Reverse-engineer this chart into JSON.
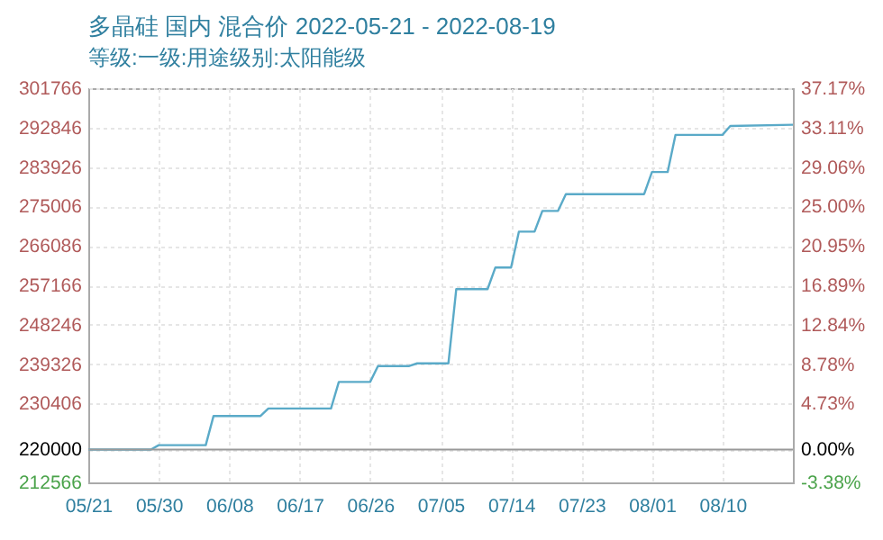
{
  "chart_data": {
    "type": "line",
    "title": "多晶硅 国内 混合价 2022-05-21 - 2022-08-19",
    "subtitle": "等级:一级:用途级别:太阳能级",
    "x": [
      "2022-05-21",
      "2022-05-29",
      "2022-05-30",
      "2022-06-05",
      "2022-06-06",
      "2022-06-12",
      "2022-06-13",
      "2022-06-21",
      "2022-06-22",
      "2022-06-26",
      "2022-06-27",
      "2022-07-01",
      "2022-07-02",
      "2022-07-06",
      "2022-07-07",
      "2022-07-11",
      "2022-07-12",
      "2022-07-14",
      "2022-07-15",
      "2022-07-17",
      "2022-07-18",
      "2022-07-20",
      "2022-07-21",
      "2022-07-31",
      "2022-08-01",
      "2022-08-03",
      "2022-08-04",
      "2022-08-10",
      "2022-08-11",
      "2022-08-19"
    ],
    "series": [
      {
        "color": "#5aaac8",
        "values": [
          220000,
          220000,
          221000,
          221000,
          227600,
          227600,
          229300,
          229300,
          235300,
          235300,
          238900,
          238900,
          239500,
          239500,
          256300,
          256300,
          261200,
          261200,
          269300,
          269300,
          274000,
          274000,
          277800,
          277800,
          282800,
          282800,
          291200,
          291200,
          293200,
          293500
        ]
      }
    ],
    "xlim": [
      "2022-05-21",
      "2022-08-19"
    ],
    "xticks": [
      {
        "value": "2022-05-21",
        "label": "05/21"
      },
      {
        "value": "2022-05-30",
        "label": "05/30"
      },
      {
        "value": "2022-06-08",
        "label": "06/08"
      },
      {
        "value": "2022-06-17",
        "label": "06/17"
      },
      {
        "value": "2022-06-26",
        "label": "06/26"
      },
      {
        "value": "2022-07-05",
        "label": "07/05"
      },
      {
        "value": "2022-07-14",
        "label": "07/14"
      },
      {
        "value": "2022-07-23",
        "label": "07/23"
      },
      {
        "value": "2022-08-01",
        "label": "08/01"
      },
      {
        "value": "2022-08-10",
        "label": "08/10"
      }
    ],
    "ylim": [
      212566,
      301766
    ],
    "yticks": [
      212566,
      220000,
      230406,
      239326,
      248246,
      257166,
      266086,
      275006,
      283926,
      292846,
      301766
    ],
    "y2lim": [
      -3.38,
      37.17
    ],
    "y2ticks": [
      {
        "value": -3.38,
        "label": "-3.38%"
      },
      {
        "value": 0,
        "label": "0.00%"
      },
      {
        "value": 4.73,
        "label": "4.73%"
      },
      {
        "value": 8.78,
        "label": "8.78%"
      },
      {
        "value": 12.84,
        "label": "12.84%"
      },
      {
        "value": 16.89,
        "label": "16.89%"
      },
      {
        "value": 20.95,
        "label": "20.95%"
      },
      {
        "value": 25.0,
        "label": "25.00%"
      },
      {
        "value": 29.06,
        "label": "29.06%"
      },
      {
        "value": 33.11,
        "label": "33.11%"
      },
      {
        "value": 37.17,
        "label": "37.17%"
      }
    ],
    "ref_lines": [
      {
        "axis": "y2",
        "value": 0,
        "color": "#999999"
      }
    ],
    "grid": true
  }
}
